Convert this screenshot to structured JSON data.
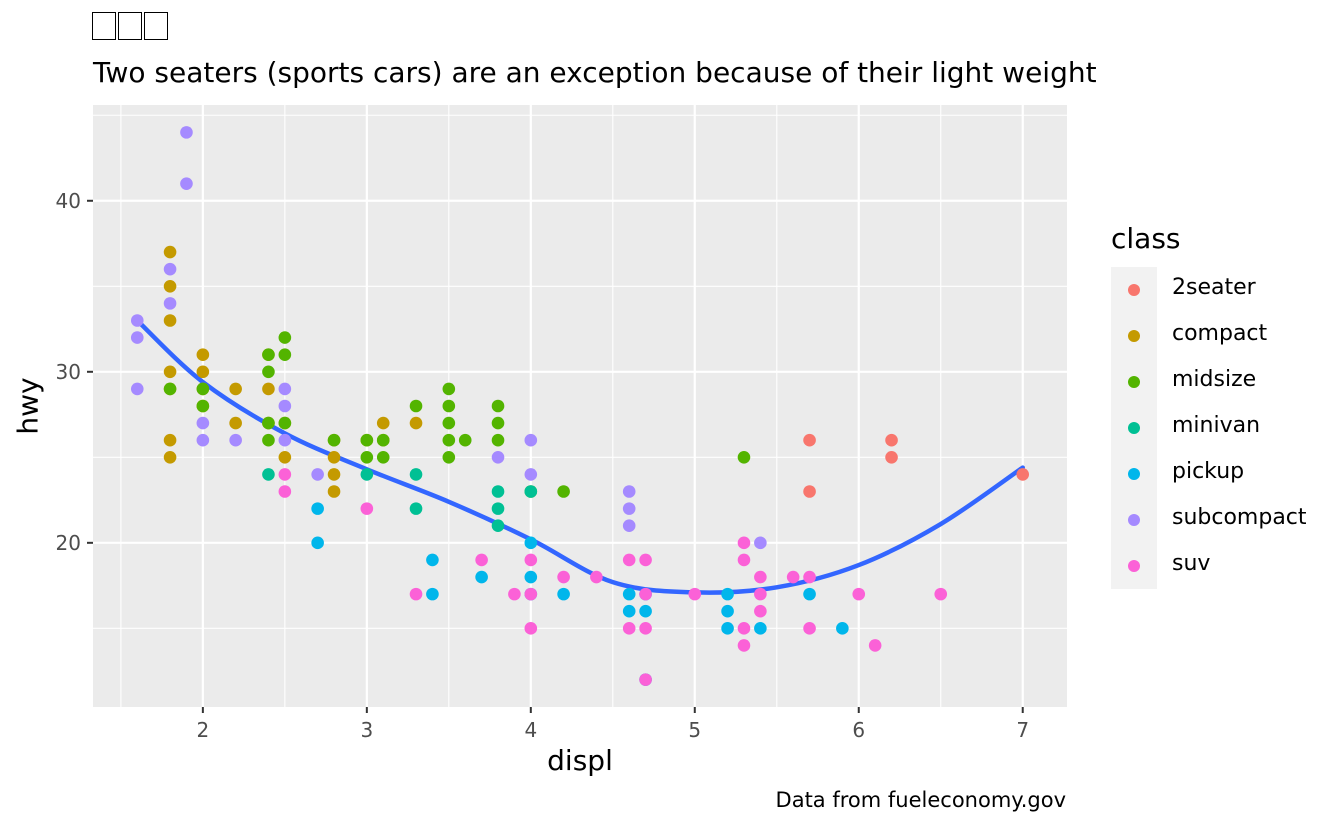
{
  "chart_data": {
    "type": "scatter",
    "title": "",
    "subtitle": "Two seaters (sports cars) are an exception because of their light weight",
    "caption": "Data from fueleconomy.gov",
    "xlabel": "displ",
    "ylabel": "hwy",
    "xlim": [
      1.33,
      7.27
    ],
    "ylim": [
      10.4,
      45.6
    ],
    "x_ticks": [
      "2",
      "3",
      "4",
      "5",
      "6",
      "7"
    ],
    "y_ticks": [
      "20",
      "30",
      "40"
    ],
    "grid": true,
    "legend_title": "class",
    "legend_position": "right",
    "series": [
      {
        "name": "2seater",
        "color": "#F8766D",
        "points": [
          [
            5.7,
            26
          ],
          [
            5.7,
            23
          ],
          [
            6.2,
            26
          ],
          [
            6.2,
            25
          ],
          [
            7.0,
            24
          ]
        ]
      },
      {
        "name": "compact",
        "color": "#C49A00",
        "points": [
          [
            1.8,
            37
          ],
          [
            1.8,
            35
          ],
          [
            1.8,
            33
          ],
          [
            1.8,
            30
          ],
          [
            1.8,
            29
          ],
          [
            1.8,
            26
          ],
          [
            1.8,
            25
          ],
          [
            2.0,
            31
          ],
          [
            2.0,
            30
          ],
          [
            2.0,
            29
          ],
          [
            2.0,
            28
          ],
          [
            2.2,
            29
          ],
          [
            2.2,
            27
          ],
          [
            2.4,
            31
          ],
          [
            2.4,
            29
          ],
          [
            2.4,
            27
          ],
          [
            2.5,
            27
          ],
          [
            2.5,
            25
          ],
          [
            2.8,
            26
          ],
          [
            2.8,
            25
          ],
          [
            2.8,
            24
          ],
          [
            2.8,
            23
          ],
          [
            3.0,
            26
          ],
          [
            3.1,
            27
          ],
          [
            3.1,
            26
          ],
          [
            3.3,
            27
          ]
        ]
      },
      {
        "name": "midsize",
        "color": "#53B400",
        "points": [
          [
            1.8,
            29
          ],
          [
            2.0,
            29
          ],
          [
            2.0,
            28
          ],
          [
            2.4,
            31
          ],
          [
            2.4,
            30
          ],
          [
            2.4,
            27
          ],
          [
            2.4,
            26
          ],
          [
            2.5,
            32
          ],
          [
            2.5,
            31
          ],
          [
            2.5,
            27
          ],
          [
            2.8,
            26
          ],
          [
            3.0,
            26
          ],
          [
            3.0,
            25
          ],
          [
            3.1,
            26
          ],
          [
            3.1,
            25
          ],
          [
            3.3,
            28
          ],
          [
            3.5,
            29
          ],
          [
            3.5,
            28
          ],
          [
            3.5,
            27
          ],
          [
            3.5,
            26
          ],
          [
            3.5,
            25
          ],
          [
            3.6,
            26
          ],
          [
            3.8,
            28
          ],
          [
            3.8,
            27
          ],
          [
            3.8,
            26
          ],
          [
            4.0,
            23
          ],
          [
            4.2,
            23
          ],
          [
            5.3,
            25
          ]
        ]
      },
      {
        "name": "minivan",
        "color": "#00C094",
        "points": [
          [
            2.4,
            24
          ],
          [
            3.0,
            24
          ],
          [
            3.3,
            24
          ],
          [
            3.3,
            22
          ],
          [
            3.8,
            23
          ],
          [
            3.8,
            22
          ],
          [
            3.8,
            21
          ],
          [
            4.0,
            23
          ]
        ]
      },
      {
        "name": "pickup",
        "color": "#00B6EB",
        "points": [
          [
            2.7,
            22
          ],
          [
            2.7,
            20
          ],
          [
            3.4,
            19
          ],
          [
            3.4,
            17
          ],
          [
            3.7,
            18
          ],
          [
            4.0,
            20
          ],
          [
            4.0,
            18
          ],
          [
            4.0,
            17
          ],
          [
            4.2,
            17
          ],
          [
            4.6,
            17
          ],
          [
            4.6,
            16
          ],
          [
            4.7,
            17
          ],
          [
            4.7,
            16
          ],
          [
            4.7,
            12
          ],
          [
            5.2,
            17
          ],
          [
            5.2,
            16
          ],
          [
            5.2,
            15
          ],
          [
            5.4,
            15
          ],
          [
            5.7,
            17
          ],
          [
            5.9,
            15
          ]
        ]
      },
      {
        "name": "subcompact",
        "color": "#A58AFF",
        "points": [
          [
            1.6,
            33
          ],
          [
            1.6,
            32
          ],
          [
            1.6,
            29
          ],
          [
            1.8,
            36
          ],
          [
            1.8,
            34
          ],
          [
            1.9,
            44
          ],
          [
            1.9,
            41
          ],
          [
            2.0,
            27
          ],
          [
            2.0,
            26
          ],
          [
            2.2,
            26
          ],
          [
            2.5,
            29
          ],
          [
            2.5,
            28
          ],
          [
            2.5,
            26
          ],
          [
            2.7,
            24
          ],
          [
            3.8,
            25
          ],
          [
            4.0,
            26
          ],
          [
            4.0,
            24
          ],
          [
            4.6,
            23
          ],
          [
            4.6,
            22
          ],
          [
            4.6,
            21
          ],
          [
            5.4,
            20
          ]
        ]
      },
      {
        "name": "suv",
        "color": "#FB61D7",
        "points": [
          [
            2.5,
            24
          ],
          [
            2.5,
            23
          ],
          [
            3.0,
            22
          ],
          [
            3.3,
            17
          ],
          [
            3.7,
            19
          ],
          [
            3.9,
            17
          ],
          [
            4.0,
            19
          ],
          [
            4.0,
            17
          ],
          [
            4.0,
            15
          ],
          [
            4.2,
            18
          ],
          [
            4.4,
            18
          ],
          [
            4.6,
            19
          ],
          [
            4.6,
            15
          ],
          [
            4.7,
            19
          ],
          [
            4.7,
            17
          ],
          [
            4.7,
            15
          ],
          [
            4.7,
            12
          ],
          [
            5.0,
            17
          ],
          [
            5.3,
            20
          ],
          [
            5.3,
            19
          ],
          [
            5.3,
            15
          ],
          [
            5.3,
            14
          ],
          [
            5.4,
            18
          ],
          [
            5.4,
            17
          ],
          [
            5.4,
            16
          ],
          [
            5.6,
            18
          ],
          [
            5.7,
            18
          ],
          [
            5.7,
            15
          ],
          [
            6.0,
            17
          ],
          [
            6.1,
            14
          ],
          [
            6.5,
            17
          ]
        ]
      }
    ],
    "smooth": {
      "color": "#3366FF",
      "x": [
        1.6,
        2.0,
        2.5,
        3.0,
        3.5,
        4.0,
        4.5,
        5.0,
        5.5,
        6.0,
        6.5,
        7.0
      ],
      "y": [
        33.0,
        29.4,
        26.4,
        24.3,
        22.4,
        20.2,
        17.7,
        17.1,
        17.4,
        18.7,
        21.1,
        24.4
      ]
    }
  }
}
